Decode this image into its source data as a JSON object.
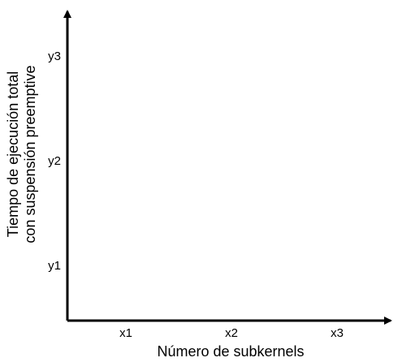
{
  "chart_data": {
    "type": "line",
    "title": "",
    "xlabel": "Número de subkernels",
    "ylabel_lines": [
      "Tiempo de ejecución total",
      "con suspensión preemptive"
    ],
    "x_ticks": [
      "x1",
      "x2",
      "x3"
    ],
    "y_ticks": [
      "y1",
      "y2",
      "y3"
    ],
    "series": [],
    "grid": false,
    "legend": "none"
  }
}
